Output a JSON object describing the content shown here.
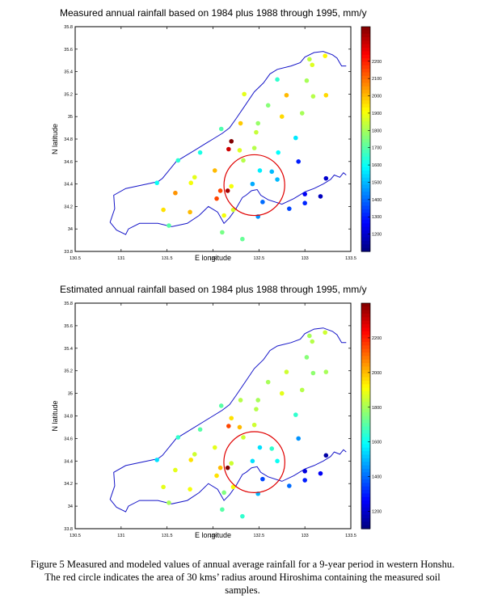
{
  "chart_data": [
    {
      "type": "scatter",
      "title": "Measured annual rainfall based on 1984 plus 1988 through 1995, mm/y",
      "xlabel": "E longitude",
      "ylabel": "N latitude",
      "xlim": [
        130.5,
        133.5
      ],
      "ylim": [
        33.8,
        35.8
      ],
      "x_ticks": [
        "130.5",
        "131",
        "131.5",
        "132",
        "132.5",
        "133",
        "133.5"
      ],
      "y_ticks": [
        "33.8",
        "34",
        "34.2",
        "34.4",
        "34.6",
        "34.8",
        "35",
        "35.2",
        "35.4",
        "35.6",
        "35.8"
      ],
      "colorbar": {
        "min": 1100,
        "max": 2400,
        "ticks": [
          "1200",
          "1300",
          "1400",
          "1500",
          "1600",
          "1700",
          "1800",
          "1900",
          "2000",
          "2100",
          "2200"
        ]
      },
      "circle": {
        "center": [
          132.45,
          34.39
        ],
        "radius_km": 30,
        "color": "#e00000"
      },
      "points": [
        {
          "lon": 133.22,
          "lat": 35.54,
          "value": 1920
        },
        {
          "lon": 133.05,
          "lat": 35.51,
          "value": 1830
        },
        {
          "lon": 133.08,
          "lat": 35.46,
          "value": 1870
        },
        {
          "lon": 132.7,
          "lat": 35.33,
          "value": 1650
        },
        {
          "lon": 133.02,
          "lat": 35.32,
          "value": 1800
        },
        {
          "lon": 132.34,
          "lat": 35.2,
          "value": 1880
        },
        {
          "lon": 132.8,
          "lat": 35.19,
          "value": 2000
        },
        {
          "lon": 133.09,
          "lat": 35.18,
          "value": 1820
        },
        {
          "lon": 133.23,
          "lat": 35.19,
          "value": 1960
        },
        {
          "lon": 132.6,
          "lat": 35.1,
          "value": 1760
        },
        {
          "lon": 132.97,
          "lat": 35.03,
          "value": 1800
        },
        {
          "lon": 132.75,
          "lat": 35.0,
          "value": 1960
        },
        {
          "lon": 132.3,
          "lat": 34.94,
          "value": 1980
        },
        {
          "lon": 132.49,
          "lat": 34.94,
          "value": 1780
        },
        {
          "lon": 132.09,
          "lat": 34.89,
          "value": 1690
        },
        {
          "lon": 132.47,
          "lat": 34.86,
          "value": 1840
        },
        {
          "lon": 132.2,
          "lat": 34.78,
          "value": 2400
        },
        {
          "lon": 132.9,
          "lat": 34.81,
          "value": 1560
        },
        {
          "lon": 132.17,
          "lat": 34.71,
          "value": 2300
        },
        {
          "lon": 132.29,
          "lat": 34.7,
          "value": 1870
        },
        {
          "lon": 132.45,
          "lat": 34.72,
          "value": 1820
        },
        {
          "lon": 131.86,
          "lat": 34.68,
          "value": 1620
        },
        {
          "lon": 132.71,
          "lat": 34.68,
          "value": 1590
        },
        {
          "lon": 131.62,
          "lat": 34.61,
          "value": 1640
        },
        {
          "lon": 132.33,
          "lat": 34.61,
          "value": 1820
        },
        {
          "lon": 132.93,
          "lat": 34.6,
          "value": 1300
        },
        {
          "lon": 132.02,
          "lat": 34.52,
          "value": 2000
        },
        {
          "lon": 132.51,
          "lat": 34.52,
          "value": 1570
        },
        {
          "lon": 132.64,
          "lat": 34.51,
          "value": 1500
        },
        {
          "lon": 133.23,
          "lat": 34.45,
          "value": 1200
        },
        {
          "lon": 131.8,
          "lat": 34.46,
          "value": 1880
        },
        {
          "lon": 132.7,
          "lat": 34.44,
          "value": 1500
        },
        {
          "lon": 131.39,
          "lat": 34.41,
          "value": 1600
        },
        {
          "lon": 131.76,
          "lat": 34.41,
          "value": 1900
        },
        {
          "lon": 132.43,
          "lat": 34.4,
          "value": 1480
        },
        {
          "lon": 132.2,
          "lat": 34.38,
          "value": 1900
        },
        {
          "lon": 132.08,
          "lat": 34.34,
          "value": 2150
        },
        {
          "lon": 132.16,
          "lat": 34.34,
          "value": 2350
        },
        {
          "lon": 131.59,
          "lat": 34.32,
          "value": 2050
        },
        {
          "lon": 133.0,
          "lat": 34.31,
          "value": 1250
        },
        {
          "lon": 133.17,
          "lat": 34.29,
          "value": 1180
        },
        {
          "lon": 132.04,
          "lat": 34.27,
          "value": 2150
        },
        {
          "lon": 132.54,
          "lat": 34.24,
          "value": 1400
        },
        {
          "lon": 133.0,
          "lat": 34.23,
          "value": 1310
        },
        {
          "lon": 131.46,
          "lat": 34.17,
          "value": 1950
        },
        {
          "lon": 131.75,
          "lat": 34.15,
          "value": 2000
        },
        {
          "lon": 132.22,
          "lat": 34.17,
          "value": 1860
        },
        {
          "lon": 132.83,
          "lat": 34.18,
          "value": 1350
        },
        {
          "lon": 132.12,
          "lat": 34.12,
          "value": 1900
        },
        {
          "lon": 132.49,
          "lat": 34.11,
          "value": 1450
        },
        {
          "lon": 131.52,
          "lat": 34.03,
          "value": 1700
        },
        {
          "lon": 132.1,
          "lat": 33.97,
          "value": 1740
        },
        {
          "lon": 132.32,
          "lat": 33.91,
          "value": 1720
        }
      ]
    },
    {
      "type": "scatter",
      "title": "Estimated annual rainfall based on 1984 plus 1988 through 1995, mm/y",
      "xlabel": "E longitude",
      "ylabel": "N latitude",
      "xlim": [
        130.5,
        133.5
      ],
      "ylim": [
        33.8,
        35.8
      ],
      "x_ticks": [
        "130.5",
        "131",
        "131.5",
        "132",
        "132.5",
        "133",
        "133.5"
      ],
      "y_ticks": [
        "33.8",
        "34",
        "34.2",
        "34.4",
        "34.6",
        "34.8",
        "35",
        "35.2",
        "35.4",
        "35.6",
        "35.8"
      ],
      "colorbar": {
        "min": 1100,
        "max": 2400,
        "ticks": [
          "1200",
          "1400",
          "1600",
          "1800",
          "2000",
          "2200"
        ]
      },
      "circle": {
        "center": [
          132.45,
          34.39
        ],
        "radius_km": 30,
        "color": "#e00000"
      },
      "points": [
        {
          "lon": 133.22,
          "lat": 35.54,
          "value": 1850
        },
        {
          "lon": 133.05,
          "lat": 35.51,
          "value": 1800
        },
        {
          "lon": 133.08,
          "lat": 35.46,
          "value": 1820
        },
        {
          "lon": 133.02,
          "lat": 35.32,
          "value": 1760
        },
        {
          "lon": 133.09,
          "lat": 35.18,
          "value": 1770
        },
        {
          "lon": 133.23,
          "lat": 35.19,
          "value": 1800
        },
        {
          "lon": 132.8,
          "lat": 35.19,
          "value": 1850
        },
        {
          "lon": 132.6,
          "lat": 35.1,
          "value": 1800
        },
        {
          "lon": 132.97,
          "lat": 35.03,
          "value": 1820
        },
        {
          "lon": 132.75,
          "lat": 35.0,
          "value": 1880
        },
        {
          "lon": 132.3,
          "lat": 34.94,
          "value": 1820
        },
        {
          "lon": 132.49,
          "lat": 34.94,
          "value": 1800
        },
        {
          "lon": 132.09,
          "lat": 34.89,
          "value": 1700
        },
        {
          "lon": 132.47,
          "lat": 34.86,
          "value": 1820
        },
        {
          "lon": 132.9,
          "lat": 34.81,
          "value": 1650
        },
        {
          "lon": 132.2,
          "lat": 34.78,
          "value": 1950
        },
        {
          "lon": 132.17,
          "lat": 34.71,
          "value": 2150
        },
        {
          "lon": 132.29,
          "lat": 34.7,
          "value": 2000
        },
        {
          "lon": 132.45,
          "lat": 34.72,
          "value": 1850
        },
        {
          "lon": 131.86,
          "lat": 34.68,
          "value": 1700
        },
        {
          "lon": 131.62,
          "lat": 34.61,
          "value": 1650
        },
        {
          "lon": 132.33,
          "lat": 34.61,
          "value": 1850
        },
        {
          "lon": 132.93,
          "lat": 34.6,
          "value": 1450
        },
        {
          "lon": 132.51,
          "lat": 34.52,
          "value": 1550
        },
        {
          "lon": 132.64,
          "lat": 34.51,
          "value": 1650
        },
        {
          "lon": 132.02,
          "lat": 34.52,
          "value": 1880
        },
        {
          "lon": 133.23,
          "lat": 34.45,
          "value": 1150
        },
        {
          "lon": 131.8,
          "lat": 34.46,
          "value": 1850
        },
        {
          "lon": 131.39,
          "lat": 34.41,
          "value": 1550
        },
        {
          "lon": 131.76,
          "lat": 34.41,
          "value": 1950
        },
        {
          "lon": 132.43,
          "lat": 34.4,
          "value": 1550
        },
        {
          "lon": 132.2,
          "lat": 34.38,
          "value": 1850
        },
        {
          "lon": 132.08,
          "lat": 34.34,
          "value": 2000
        },
        {
          "lon": 132.16,
          "lat": 34.34,
          "value": 2400
        },
        {
          "lon": 132.7,
          "lat": 34.4,
          "value": 1600
        },
        {
          "lon": 131.59,
          "lat": 34.32,
          "value": 1880
        },
        {
          "lon": 133.0,
          "lat": 34.31,
          "value": 1220
        },
        {
          "lon": 133.17,
          "lat": 34.29,
          "value": 1250
        },
        {
          "lon": 132.04,
          "lat": 34.27,
          "value": 1950
        },
        {
          "lon": 132.54,
          "lat": 34.24,
          "value": 1350
        },
        {
          "lon": 133.0,
          "lat": 34.23,
          "value": 1300
        },
        {
          "lon": 131.46,
          "lat": 34.17,
          "value": 1880
        },
        {
          "lon": 131.75,
          "lat": 34.15,
          "value": 1900
        },
        {
          "lon": 132.22,
          "lat": 34.17,
          "value": 1900
        },
        {
          "lon": 132.83,
          "lat": 34.18,
          "value": 1400
        },
        {
          "lon": 132.12,
          "lat": 34.12,
          "value": 1750
        },
        {
          "lon": 132.49,
          "lat": 34.11,
          "value": 1500
        },
        {
          "lon": 131.52,
          "lat": 34.03,
          "value": 1800
        },
        {
          "lon": 132.1,
          "lat": 33.97,
          "value": 1700
        },
        {
          "lon": 132.32,
          "lat": 33.91,
          "value": 1650
        }
      ]
    }
  ],
  "caption": {
    "lines": [
      "Figure 5  Measured and modeled values of annual average rainfall for a 9-year period in western Honshu.",
      "The red circle indicates the area of 30 kms’ radius around Hiroshima containing the measured soil",
      "samples."
    ]
  }
}
